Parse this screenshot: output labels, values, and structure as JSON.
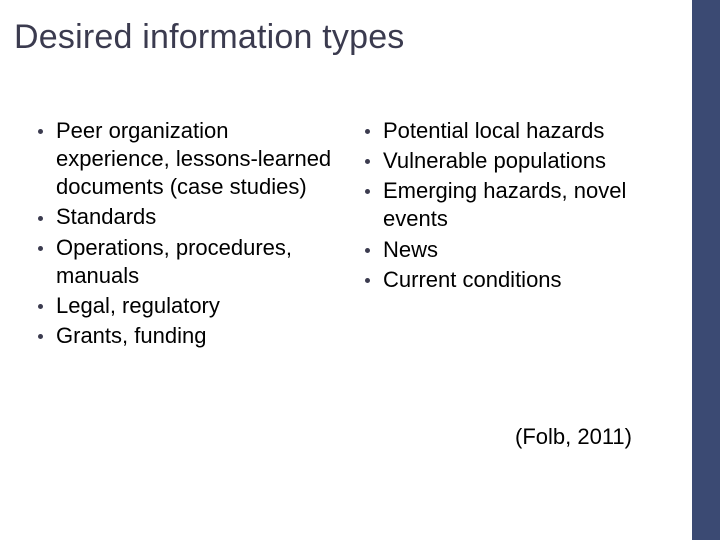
{
  "slide": {
    "title": "Desired information types",
    "title_color": "#3b3b4f",
    "title_fontsize": 34,
    "body_color": "#000000",
    "body_fontsize": 22,
    "bullet_color": "#3b3b4f",
    "accent_bar_color": "#3b4a73",
    "background_color": "#ffffff",
    "columns": {
      "left": [
        "Peer organization experience, lessons-learned documents (case studies)",
        "Standards",
        "Operations, procedures, manuals",
        "Legal, regulatory",
        "Grants, funding"
      ],
      "right": [
        "Potential local hazards",
        "Vulnerable populations",
        "Emerging hazards, novel events",
        "News",
        "Current conditions"
      ]
    },
    "citation": "(Folb, 2011)"
  }
}
